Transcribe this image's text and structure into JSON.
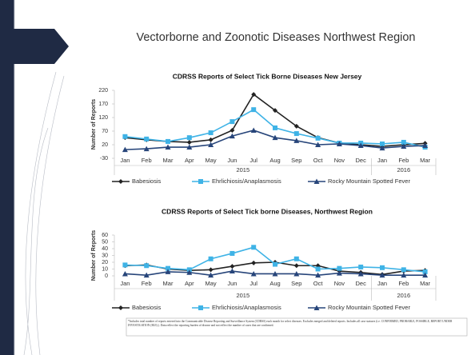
{
  "title": "Vectorborne and Zoonotic Diseases Northwest Region",
  "footnote": "*Includes total number of reports entered into the Communicable Disease Reporting and Surveillance System (CDRSS) each month for select diseases. Excludes merged and deleted reports. Includes all case statuses (i.e. CONFIRMED, PROBABLE, POSSIBLE, REPORT UNDER INVESTIGATION (RUI).). Data reflect the reporting burden of disease and not reflect the number of cases that are confirmed.",
  "chart_data": [
    {
      "type": "line",
      "title": "CDRSS Reports of Select Tick Borne Diseases New Jersey",
      "y_label": "Number of Reports",
      "categories": [
        "Jan",
        "Feb",
        "Mar",
        "Apr",
        "May",
        "Jun",
        "Jul",
        "Aug",
        "Sep",
        "Oct",
        "Nov",
        "Dec",
        "Jan",
        "Feb",
        "Mar"
      ],
      "category_groups": [
        {
          "name": "2015",
          "count": 12
        },
        {
          "name": "2016",
          "count": 3
        }
      ],
      "ylim": [
        -30,
        220
      ],
      "yticks": [
        -30,
        20,
        70,
        120,
        170,
        220
      ],
      "legend": "bottom",
      "series": [
        {
          "name": "Babesiosis",
          "color": "#222222",
          "marker": "diamond",
          "values": [
            46,
            38,
            32,
            29,
            38,
            73,
            205,
            146,
            88,
            46,
            26,
            20,
            14,
            20,
            25
          ]
        },
        {
          "name": "Ehrlichiosis/Anaplasmosis",
          "color": "#3fb3e6",
          "marker": "square",
          "values": [
            50,
            41,
            32,
            46,
            64,
            105,
            149,
            82,
            61,
            44,
            26,
            26,
            23,
            29,
            11
          ]
        },
        {
          "name": "Rocky Mountain Spotted Fever",
          "color": "#27457a",
          "marker": "triangle",
          "values": [
            2,
            5,
            11,
            11,
            20,
            52,
            73,
            46,
            35,
            20,
            23,
            17,
            8,
            14,
            17
          ]
        }
      ]
    },
    {
      "type": "line",
      "title": "CDRSS Reports of Select Tick borne Diseases, Northwest Region",
      "y_label": "Number of Reports",
      "categories": [
        "Jan",
        "Feb",
        "Mar",
        "Apr",
        "May",
        "Jun",
        "Jul",
        "Aug",
        "Sep",
        "Oct",
        "Nov",
        "Dec",
        "Jan",
        "Feb",
        "Mar"
      ],
      "category_groups": [
        {
          "name": "2015",
          "count": 12
        },
        {
          "name": "2016",
          "count": 3
        }
      ],
      "ylim": [
        0,
        60
      ],
      "yticks": [
        0,
        10,
        20,
        30,
        40,
        50,
        60
      ],
      "legend": "bottom",
      "series": [
        {
          "name": "Babesiosis",
          "color": "#222222",
          "marker": "diamond",
          "values": [
            15,
            16,
            10,
            8,
            9,
            14,
            19,
            20,
            15,
            15,
            7,
            5,
            2,
            7,
            8
          ]
        },
        {
          "name": "Ehrlichiosis/Anaplasmosis",
          "color": "#3fb3e6",
          "marker": "square",
          "values": [
            16,
            15,
            11,
            9,
            25,
            33,
            42,
            17,
            25,
            10,
            11,
            13,
            12,
            9,
            6
          ]
        },
        {
          "name": "Rocky Mountain Spotted Fever",
          "color": "#27457a",
          "marker": "triangle",
          "values": [
            3,
            1,
            6,
            5,
            1,
            7,
            3,
            3,
            3,
            1,
            4,
            3,
            1,
            1,
            1
          ]
        }
      ]
    }
  ]
}
